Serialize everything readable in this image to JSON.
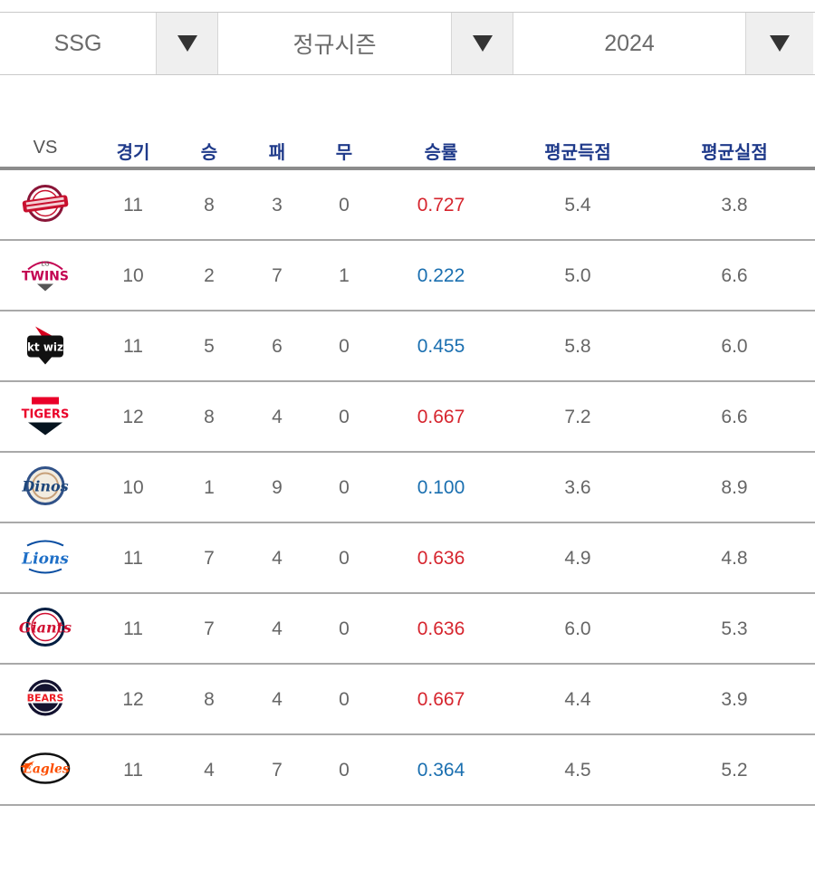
{
  "filters": {
    "team": "SSG",
    "season": "정규시즌",
    "year": "2024"
  },
  "columns": [
    "VS",
    "경기",
    "승",
    "패",
    "무",
    "승률",
    "평균득점",
    "평균실점"
  ],
  "rows": [
    {
      "team_logo": "kiwoom-logo",
      "games": "11",
      "wins": "8",
      "losses": "3",
      "draws": "0",
      "pct": "0.727",
      "pct_state": "hi",
      "avg_runs": "5.4",
      "avg_allowed": "3.8"
    },
    {
      "team_logo": "lg-twins-logo",
      "logo_text": "TWINS",
      "games": "10",
      "wins": "2",
      "losses": "7",
      "draws": "1",
      "pct": "0.222",
      "pct_state": "lo",
      "avg_runs": "5.0",
      "avg_allowed": "6.6"
    },
    {
      "team_logo": "kt-wiz-logo",
      "logo_text": "kt wiz",
      "games": "11",
      "wins": "5",
      "losses": "6",
      "draws": "0",
      "pct": "0.455",
      "pct_state": "lo",
      "avg_runs": "5.8",
      "avg_allowed": "6.0"
    },
    {
      "team_logo": "kia-tigers-logo",
      "logo_text": "TIGERS",
      "games": "12",
      "wins": "8",
      "losses": "4",
      "draws": "0",
      "pct": "0.667",
      "pct_state": "hi",
      "avg_runs": "7.2",
      "avg_allowed": "6.6"
    },
    {
      "team_logo": "nc-dinos-logo",
      "logo_text": "Dinos",
      "games": "10",
      "wins": "1",
      "losses": "9",
      "draws": "0",
      "pct": "0.100",
      "pct_state": "lo",
      "avg_runs": "3.6",
      "avg_allowed": "8.9"
    },
    {
      "team_logo": "samsung-lions-logo",
      "logo_text": "Lions",
      "games": "11",
      "wins": "7",
      "losses": "4",
      "draws": "0",
      "pct": "0.636",
      "pct_state": "hi",
      "avg_runs": "4.9",
      "avg_allowed": "4.8"
    },
    {
      "team_logo": "lotte-giants-logo",
      "logo_text": "Giants",
      "games": "11",
      "wins": "7",
      "losses": "4",
      "draws": "0",
      "pct": "0.636",
      "pct_state": "hi",
      "avg_runs": "6.0",
      "avg_allowed": "5.3"
    },
    {
      "team_logo": "doosan-bears-logo",
      "logo_text": "BEARS",
      "games": "12",
      "wins": "8",
      "losses": "4",
      "draws": "0",
      "pct": "0.667",
      "pct_state": "hi",
      "avg_runs": "4.4",
      "avg_allowed": "3.9"
    },
    {
      "team_logo": "hanwha-eagles-logo",
      "logo_text": "Eagles",
      "games": "11",
      "wins": "4",
      "losses": "7",
      "draws": "0",
      "pct": "0.364",
      "pct_state": "lo",
      "avg_runs": "4.5",
      "avg_allowed": "5.2"
    }
  ],
  "colors": {
    "header_text": "#1f3a8a",
    "pct_high": "#d6252e",
    "pct_low": "#1a6fb0",
    "body_text": "#666666"
  }
}
